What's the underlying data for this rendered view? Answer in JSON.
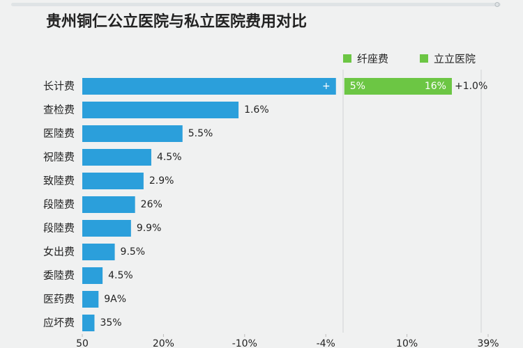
{
  "chart_data": {
    "type": "hbar",
    "title": "贵州铜仁公立医院与私立医院费用对比",
    "categories": [
      "长计费",
      "查检费",
      "医陸费",
      "祝陸费",
      "致陸费",
      "段陸费",
      "段陸费",
      "女出费",
      "委陸费",
      "医药费",
      "应坏费"
    ],
    "series": [
      {
        "name": "纤座费",
        "color": "#2b9fdb",
        "legend_color": "#6cc644",
        "values": [
          62.5,
          38.5,
          24.7,
          17,
          15.1,
          13,
          12,
          8,
          5,
          4,
          3
        ],
        "bar_labels": [
          "+",
          "1.6%",
          "5.5%",
          "4.5%",
          "2.9%",
          "26%",
          "9.9%",
          "9.5%",
          "4.5%",
          "9A%",
          "35%"
        ]
      },
      {
        "name": "立立医院",
        "color": "#6cc644",
        "legend_color": "#6cc644",
        "values": [
          26.5,
          null,
          null,
          null,
          null,
          null,
          null,
          null,
          null,
          null,
          null
        ],
        "bar_labels": [
          "16%",
          null,
          null,
          null,
          null,
          null,
          null,
          null,
          null,
          null,
          null
        ],
        "start_labels": [
          "5%",
          null,
          null,
          null,
          null,
          null,
          null,
          null,
          null,
          null,
          null
        ],
        "outer_labels": [
          "+1.0%",
          null,
          null,
          null,
          null,
          null,
          null,
          null,
          null,
          null,
          null
        ]
      }
    ],
    "xlim": [
      0,
      100
    ],
    "xticks": [
      {
        "value": 0,
        "label": "50"
      },
      {
        "value": 20,
        "label": "20%"
      },
      {
        "value": 40,
        "label": "-10%"
      },
      {
        "value": 60,
        "label": "-4%"
      },
      {
        "value": 80,
        "label": "10%"
      },
      {
        "value": 100,
        "label": "39%"
      }
    ]
  }
}
